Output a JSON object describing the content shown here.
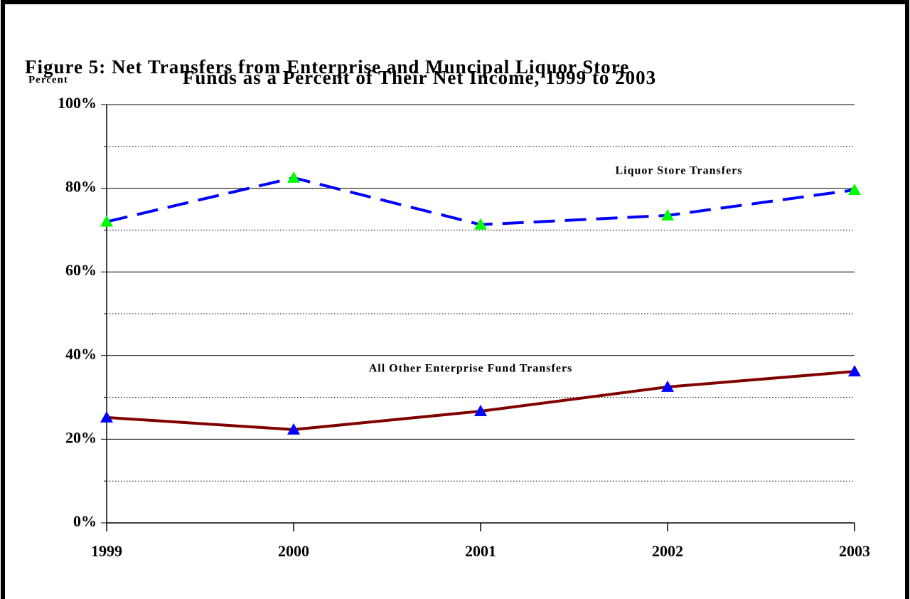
{
  "chart_data": {
    "type": "line",
    "title": "Figure 5:  Net Transfers from Enterprise and Muncipal Liquor Store",
    "subtitle": "Funds as a Percent of Their Net Income, 1999 to 2003",
    "y_label": "Percent",
    "categories": [
      "1999",
      "2000",
      "2001",
      "2002",
      "2003"
    ],
    "series": [
      {
        "name": "Liquor Store Transfers",
        "color": "#0000ff",
        "marker_color": "#00ff00",
        "dashed": true,
        "values": [
          72,
          82.5,
          71.3,
          73.5,
          79.6
        ]
      },
      {
        "name": "All Other Enterprise Fund Transfers",
        "color": "#800000",
        "marker_color": "#0000ff",
        "dashed": false,
        "values": [
          25.2,
          22.3,
          26.7,
          32.5,
          36.2
        ]
      }
    ],
    "ylim": [
      0,
      100
    ],
    "yticks": [
      {
        "value": 0,
        "label": "0%"
      },
      {
        "value": 20,
        "label": "20%"
      },
      {
        "value": 40,
        "label": "40%"
      },
      {
        "value": 60,
        "label": "60%"
      },
      {
        "value": 80,
        "label": "80%"
      },
      {
        "value": 100,
        "label": "100%"
      }
    ],
    "minor_yticks": [
      10,
      30,
      50,
      70,
      90
    ],
    "grid": true
  }
}
